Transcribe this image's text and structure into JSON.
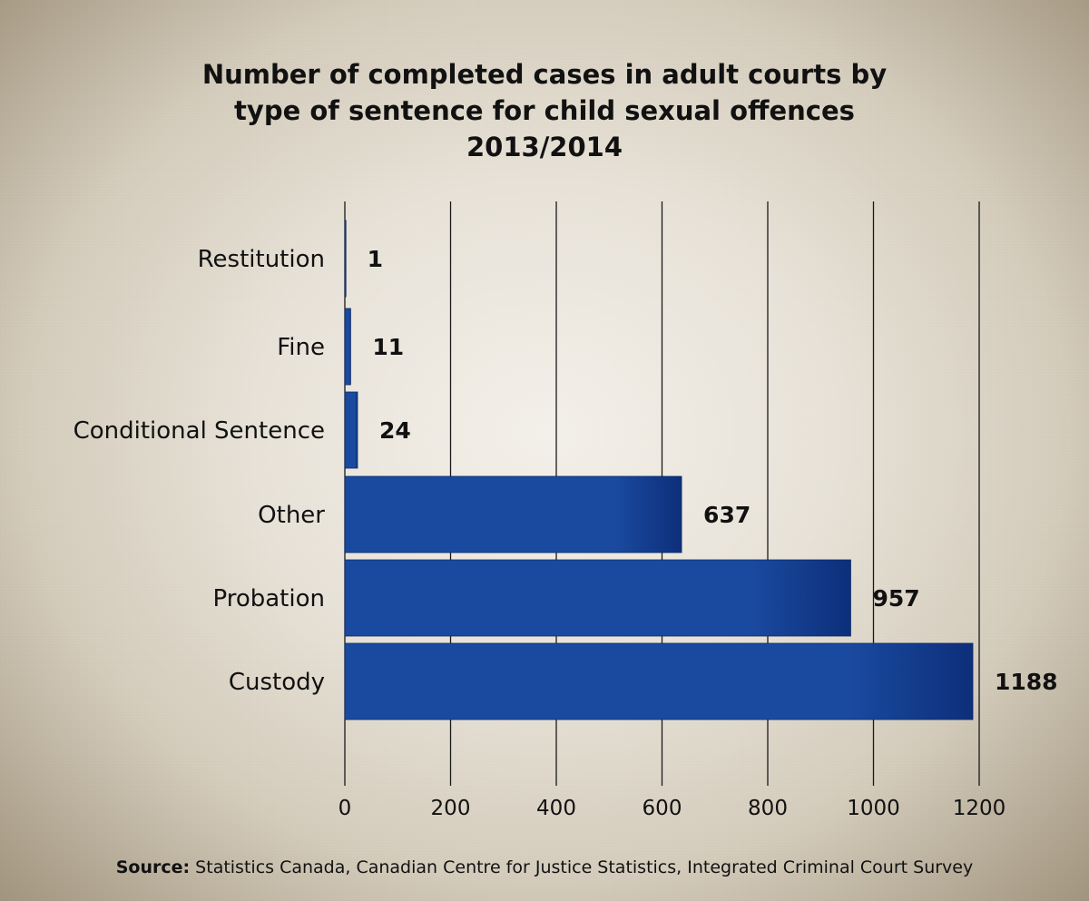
{
  "title_lines": [
    "Number of completed cases in adult courts by",
    "type of sentence for child sexual offences",
    "2013/2014"
  ],
  "source": {
    "label": "Source:",
    "text": " Statistics Canada, Canadian Centre for Justice Statistics, Integrated Criminal Court Survey"
  },
  "colors": {
    "bar": "#1a4aa0",
    "bar_dark": "#0d2f7a",
    "gridline": "#1a1a1a",
    "text": "#111111"
  },
  "chart_data": {
    "type": "bar",
    "orientation": "horizontal",
    "categories": [
      "Restitution",
      "Fine",
      "Conditional Sentence",
      "Other",
      "Probation",
      "Custody"
    ],
    "values": [
      1,
      11,
      24,
      637,
      957,
      1188
    ],
    "xlim": [
      0,
      1200
    ],
    "xticks": [
      0,
      200,
      400,
      600,
      800,
      1000,
      1200
    ],
    "grid": true
  }
}
